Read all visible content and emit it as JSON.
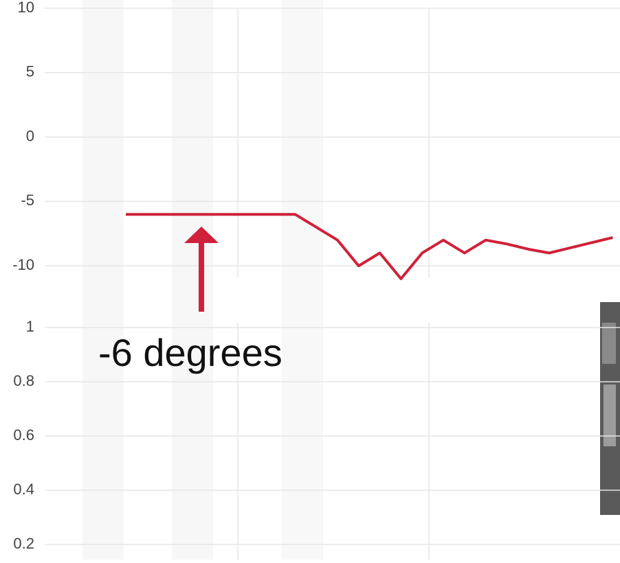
{
  "chart_data": [
    {
      "type": "line",
      "categories": [
        null,
        null,
        null,
        null,
        null,
        null,
        null,
        null,
        null,
        null,
        null,
        null,
        null,
        null,
        null,
        null,
        null,
        null,
        null,
        null,
        null,
        null,
        null,
        null
      ],
      "series": [
        {
          "color": "#d0213a",
          "values": [
            -6,
            -6,
            -6,
            -6,
            -6,
            -6,
            -6,
            -6,
            -6,
            -7,
            -8,
            -10,
            -9,
            -11,
            -9,
            -8,
            -9,
            -8,
            -8.3,
            -8.7,
            -9,
            -8.6,
            -8.2,
            -7.8
          ]
        }
      ],
      "ylim": [
        -11,
        10
      ],
      "yticks": [
        10,
        5,
        0,
        -5,
        -10
      ],
      "grid": true,
      "annotation": "-6 degrees"
    },
    {
      "type": "line",
      "ylim": [
        0.2,
        1
      ],
      "yticks": [
        1,
        0.8,
        0.6,
        0.4,
        0.2
      ],
      "grid": true
    }
  ]
}
